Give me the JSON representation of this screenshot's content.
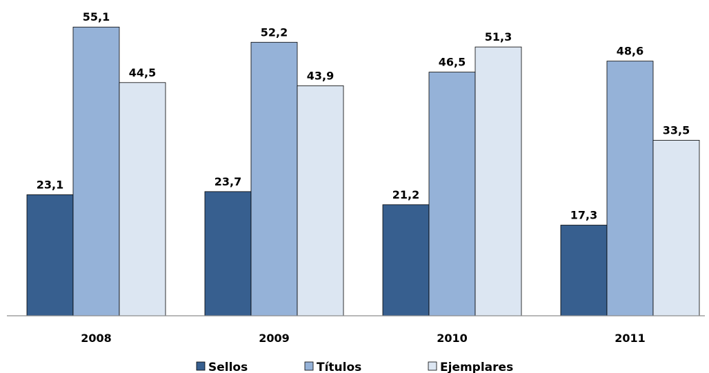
{
  "chart_data": {
    "type": "bar",
    "categories": [
      "2008",
      "2009",
      "2010",
      "2011"
    ],
    "series": [
      {
        "name": "Sellos",
        "values": [
          23.1,
          23.7,
          21.2,
          17.3
        ],
        "color": "#375F8F"
      },
      {
        "name": "Títulos",
        "values": [
          55.1,
          52.2,
          46.5,
          48.6
        ],
        "color": "#95B2D8"
      },
      {
        "name": "Ejemplares",
        "values": [
          44.5,
          43.9,
          51.3,
          33.5
        ],
        "color": "#DCE6F2"
      }
    ],
    "value_labels": {
      "Sellos": [
        "23,1",
        "23,7",
        "21,2",
        "17,3"
      ],
      "Títulos": [
        "55,1",
        "52,2",
        "46,5",
        "48,6"
      ],
      "Ejemplares": [
        "44,5",
        "43,9",
        "51,3",
        "33,5"
      ]
    },
    "ylim": [
      0,
      60
    ],
    "grid": false,
    "legend": "bottom",
    "title": "",
    "xlabel": "",
    "ylabel": ""
  }
}
